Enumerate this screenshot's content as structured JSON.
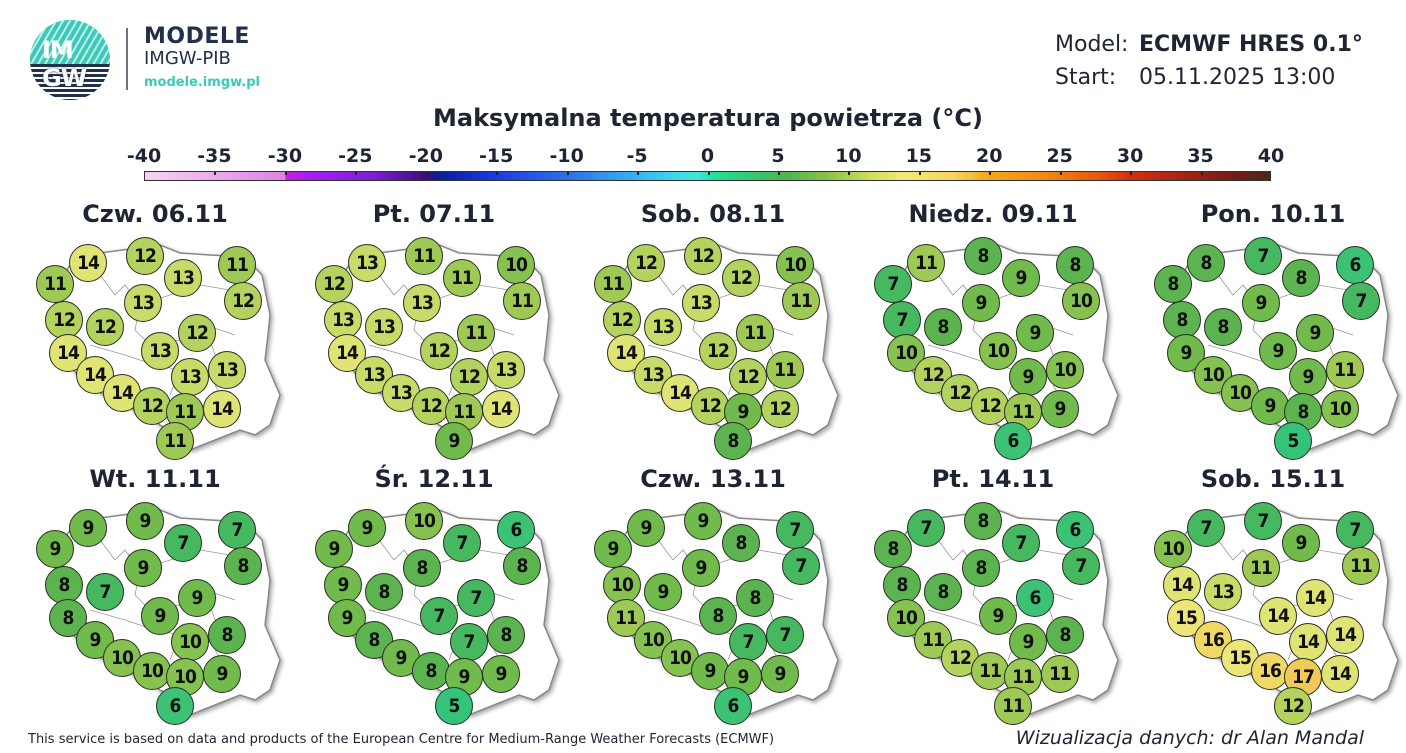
{
  "brand": {
    "logo_text_top": "IM",
    "logo_text_bottom": "GW",
    "title": "MODELE",
    "subtitle": "IMGW-PIB",
    "url": "modele.imgw.pl"
  },
  "meta": {
    "model_label": "Model:",
    "model_value": "ECMWF HRES 0.1°",
    "start_label": "Start:",
    "start_value": "05.11.2025 13:00"
  },
  "title": "Maksymalna temperatura powietrza (°C)",
  "colorbar": {
    "ticks": [
      "-40",
      "-35",
      "-30",
      "-25",
      "-20",
      "-15",
      "-10",
      "-5",
      "0",
      "5",
      "10",
      "15",
      "20",
      "25",
      "30",
      "35",
      "40"
    ],
    "min": -40,
    "max": 40
  },
  "footer": {
    "attribution": "This service is based on data and products of the European Centre for Medium-Range Weather Forecasts (ECMWF)",
    "credit": "Wizualizacja danych: dr Alan Mandal"
  },
  "chart_data": {
    "type": "heatmap",
    "title": "Maksymalna temperatura powietrza (°C)",
    "units": "°C",
    "colorbar_range": [
      -40,
      40
    ],
    "point_positions_note": "20 fixed locations per map, listed in the same order for each day",
    "days": [
      {
        "label": "Czw. 06.11",
        "values": [
          14,
          12,
          11,
          13,
          11,
          12,
          13,
          12,
          12,
          14,
          13,
          12,
          14,
          13,
          13,
          14,
          12,
          11,
          14,
          11
        ]
      },
      {
        "label": "Pt. 07.11",
        "values": [
          13,
          11,
          12,
          11,
          10,
          11,
          13,
          13,
          13,
          14,
          12,
          11,
          13,
          12,
          13,
          13,
          12,
          11,
          14,
          9
        ]
      },
      {
        "label": "Sob. 08.11",
        "values": [
          12,
          12,
          11,
          12,
          10,
          11,
          13,
          13,
          12,
          14,
          12,
          11,
          13,
          12,
          11,
          14,
          12,
          9,
          12,
          8
        ]
      },
      {
        "label": "Niedz. 09.11",
        "values": [
          11,
          8,
          7,
          9,
          8,
          10,
          9,
          8,
          7,
          10,
          10,
          9,
          12,
          9,
          10,
          12,
          12,
          11,
          9,
          6
        ]
      },
      {
        "label": "Pon. 10.11",
        "values": [
          8,
          7,
          8,
          8,
          6,
          7,
          9,
          8,
          8,
          9,
          9,
          9,
          10,
          9,
          11,
          10,
          9,
          8,
          10,
          5
        ]
      },
      {
        "label": "Wt. 11.11",
        "values": [
          9,
          9,
          9,
          7,
          7,
          8,
          9,
          7,
          8,
          8,
          9,
          9,
          9,
          10,
          8,
          10,
          10,
          10,
          9,
          6
        ]
      },
      {
        "label": "Śr. 12.11",
        "values": [
          9,
          10,
          9,
          7,
          6,
          8,
          8,
          8,
          9,
          9,
          7,
          7,
          8,
          7,
          8,
          9,
          8,
          9,
          9,
          5
        ]
      },
      {
        "label": "Czw. 13.11",
        "values": [
          9,
          9,
          9,
          8,
          7,
          7,
          9,
          9,
          10,
          11,
          8,
          8,
          10,
          7,
          7,
          10,
          9,
          9,
          9,
          6
        ]
      },
      {
        "label": "Pt. 14.11",
        "values": [
          7,
          8,
          8,
          7,
          6,
          7,
          8,
          8,
          8,
          10,
          9,
          6,
          11,
          9,
          8,
          12,
          11,
          11,
          11,
          11
        ]
      },
      {
        "label": "Sob. 15.11",
        "values": [
          7,
          7,
          10,
          9,
          7,
          11,
          11,
          13,
          14,
          15,
          14,
          14,
          16,
          14,
          14,
          15,
          16,
          17,
          14,
          12
        ]
      }
    ]
  },
  "colors": {
    "t5": "#33c47a",
    "t6": "#3cc274",
    "t7": "#45b860",
    "t8": "#5cb451",
    "t9": "#70bb4c",
    "t10": "#86c24f",
    "t11": "#9ec955",
    "t12": "#b4d25e",
    "t13": "#c7db68",
    "t14": "#dfe474",
    "t15": "#ece57a",
    "t16": "#f0d866",
    "t17": "#f0ca58"
  }
}
